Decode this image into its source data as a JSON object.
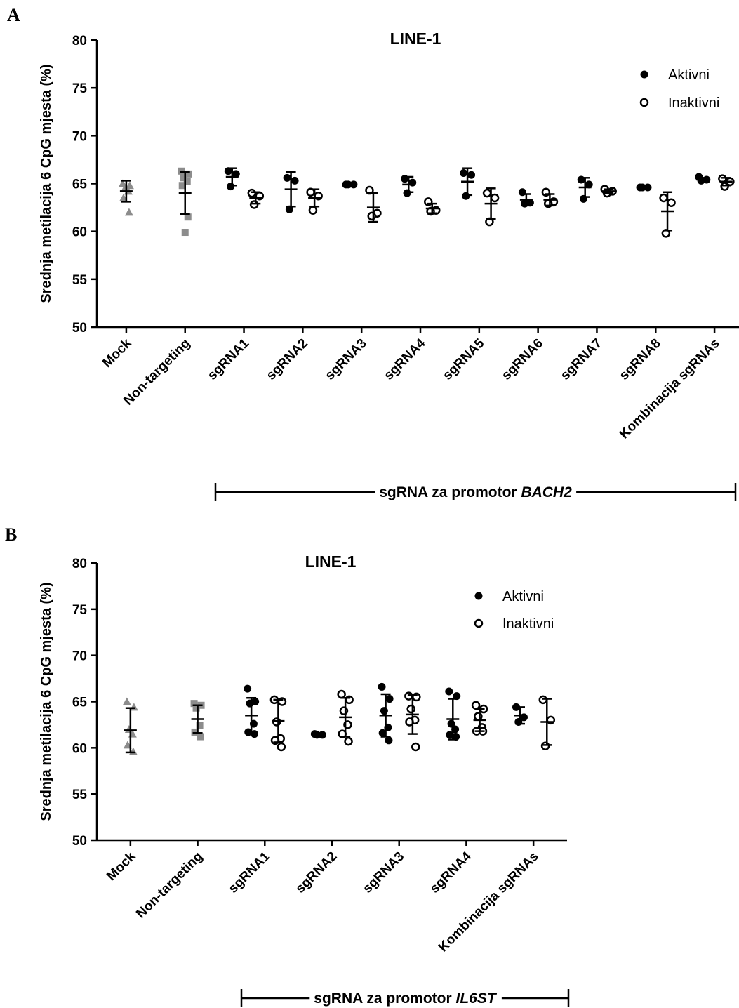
{
  "chart_data": [
    {
      "panel_label": "A",
      "type": "scatter",
      "title": "LINE-1",
      "ylabel": "Srednja metilacija 6 CpG mjesta (%)",
      "ylim": [
        50,
        80
      ],
      "yticks": [
        50,
        55,
        60,
        65,
        70,
        75,
        80
      ],
      "categories": [
        "Mock",
        "Non-targeting",
        "sgRNA1",
        "sgRNA2",
        "sgRNA3",
        "sgRNA4",
        "sgRNA5",
        "sgRNA6",
        "sgRNA7",
        "sgRNA8",
        "Kombinacija sgRNAs"
      ],
      "legend": {
        "placement": "top-right",
        "entries": [
          "Aktivni",
          "Inaktivni"
        ]
      },
      "bracket": {
        "prefix": "sgRNA za promotor ",
        "gene": "BACH2",
        "from_category": "sgRNA1",
        "to_category": "Kombinacija sgRNAs"
      },
      "controls": [
        {
          "category": "Mock",
          "marker": "triangle",
          "color": "#8c8c8c",
          "values": [
            65.0,
            64.8,
            64.5,
            64.2,
            63.5,
            62.0
          ],
          "mean": 64.2,
          "sd": 1.1
        },
        {
          "category": "Non-targeting",
          "marker": "square",
          "color": "#8c8c8c",
          "values": [
            66.3,
            66.0,
            65.6,
            65.2,
            64.8,
            61.5,
            59.9
          ],
          "mean": 64.0,
          "sd": 2.2
        }
      ],
      "series": [
        {
          "name": "Aktivni",
          "marker": "filled-circle",
          "groups": [
            {
              "category": "sgRNA1",
              "values": [
                66.3,
                66.0,
                64.7
              ],
              "mean": 65.7,
              "sd": 0.9
            },
            {
              "category": "sgRNA2",
              "values": [
                65.6,
                65.3,
                62.3
              ],
              "mean": 64.4,
              "sd": 1.8
            },
            {
              "category": "sgRNA3",
              "values": [
                64.9,
                64.9,
                64.9
              ],
              "mean": 64.9,
              "sd": 0.1
            },
            {
              "category": "sgRNA4",
              "values": [
                65.5,
                65.1,
                64.0
              ],
              "mean": 64.9,
              "sd": 0.8
            },
            {
              "category": "sgRNA5",
              "values": [
                66.1,
                65.9,
                63.7
              ],
              "mean": 65.2,
              "sd": 1.4
            },
            {
              "category": "sgRNA6",
              "values": [
                64.1,
                63.0,
                62.9
              ],
              "mean": 63.3,
              "sd": 0.6
            },
            {
              "category": "sgRNA7",
              "values": [
                65.4,
                64.9,
                63.4
              ],
              "mean": 64.6,
              "sd": 1.0
            },
            {
              "category": "sgRNA8",
              "values": [
                64.6,
                64.6,
                64.6
              ],
              "mean": 64.6,
              "sd": 0.1
            },
            {
              "category": "Kombinacija sgRNAs",
              "values": [
                65.7,
                65.4,
                65.3
              ],
              "mean": 65.4,
              "sd": 0.2
            }
          ]
        },
        {
          "name": "Inaktivni",
          "marker": "open-circle",
          "groups": [
            {
              "category": "sgRNA1",
              "values": [
                64.0,
                63.7,
                62.8
              ],
              "mean": 63.5,
              "sd": 0.6
            },
            {
              "category": "sgRNA2",
              "values": [
                64.1,
                63.7,
                62.2
              ],
              "mean": 63.5,
              "sd": 0.9
            },
            {
              "category": "sgRNA3",
              "values": [
                64.3,
                61.9,
                61.6
              ],
              "mean": 62.5,
              "sd": 1.5
            },
            {
              "category": "sgRNA4",
              "values": [
                63.1,
                62.2,
                62.1
              ],
              "mean": 62.4,
              "sd": 0.5
            },
            {
              "category": "sgRNA5",
              "values": [
                64.0,
                63.5,
                61.0
              ],
              "mean": 62.9,
              "sd": 1.6
            },
            {
              "category": "sgRNA6",
              "values": [
                64.1,
                63.1,
                62.9
              ],
              "mean": 63.3,
              "sd": 0.6
            },
            {
              "category": "sgRNA7",
              "values": [
                64.4,
                64.2,
                64.0
              ],
              "mean": 64.2,
              "sd": 0.2
            },
            {
              "category": "sgRNA8",
              "values": [
                63.5,
                63.0,
                59.8
              ],
              "mean": 62.1,
              "sd": 2.0
            },
            {
              "category": "Kombinacija sgRNAs",
              "values": [
                65.5,
                65.2,
                64.7
              ],
              "mean": 65.2,
              "sd": 0.4
            }
          ]
        }
      ]
    },
    {
      "panel_label": "B",
      "type": "scatter",
      "title": "LINE-1",
      "ylabel": "Srednja metilacija 6 CpG mjesta (%)",
      "ylim": [
        50,
        80
      ],
      "yticks": [
        50,
        55,
        60,
        65,
        70,
        75,
        80
      ],
      "categories": [
        "Mock",
        "Non-targeting",
        "sgRNA1",
        "sgRNA2",
        "sgRNA3",
        "sgRNA4",
        "Kombinacija sgRNAs"
      ],
      "legend": {
        "placement": "top-right",
        "entries": [
          "Aktivni",
          "Inaktivni"
        ]
      },
      "bracket": {
        "prefix": "sgRNA za promotor ",
        "gene": "IL6ST",
        "from_category": "sgRNA1",
        "to_category": "Kombinacija sgRNAs"
      },
      "controls": [
        {
          "category": "Mock",
          "marker": "triangle",
          "color": "#8c8c8c",
          "values": [
            65.0,
            64.4,
            62.0,
            61.5,
            60.3,
            59.6
          ],
          "mean": 61.9,
          "sd": 2.4
        },
        {
          "category": "Non-targeting",
          "marker": "square",
          "color": "#8c8c8c",
          "values": [
            64.8,
            64.6,
            64.3,
            62.4,
            61.7,
            61.2
          ],
          "mean": 63.1,
          "sd": 1.5
        }
      ],
      "series": [
        {
          "name": "Aktivni",
          "marker": "filled-circle",
          "groups": [
            {
              "category": "sgRNA1",
              "values": [
                66.4,
                65.0,
                64.8,
                62.6,
                61.7,
                61.5
              ],
              "mean": 63.5,
              "sd": 1.9
            },
            {
              "category": "sgRNA2",
              "values": [
                61.5,
                61.4,
                61.4
              ],
              "mean": 61.4,
              "sd": 0.1
            },
            {
              "category": "sgRNA3",
              "values": [
                66.6,
                65.3,
                64.0,
                62.2,
                61.6,
                60.8
              ],
              "mean": 63.5,
              "sd": 2.3
            },
            {
              "category": "sgRNA4",
              "values": [
                66.1,
                65.6,
                62.6,
                62.0,
                61.4,
                61.2
              ],
              "mean": 63.1,
              "sd": 2.2
            },
            {
              "category": "Kombinacija sgRNAs",
              "values": [
                64.4,
                63.3,
                62.8
              ],
              "mean": 63.5,
              "sd": 0.9
            }
          ]
        },
        {
          "name": "Inaktivni",
          "marker": "open-circle",
          "groups": [
            {
              "category": "sgRNA1",
              "values": [
                65.2,
                65.0,
                62.8,
                61.0,
                60.8,
                60.1
              ],
              "mean": 62.9,
              "sd": 2.3
            },
            {
              "category": "sgRNA2",
              "values": [
                65.8,
                65.2,
                64.0,
                62.5,
                61.5,
                60.7
              ],
              "mean": 63.3,
              "sd": 2.1
            },
            {
              "category": "sgRNA3",
              "values": [
                65.6,
                65.5,
                64.2,
                63.0,
                62.8,
                60.1
              ],
              "mean": 63.6,
              "sd": 2.1
            },
            {
              "category": "sgRNA4",
              "values": [
                64.6,
                64.2,
                63.4,
                62.2,
                61.8,
                61.8
              ],
              "mean": 63.0,
              "sd": 1.2
            },
            {
              "category": "Kombinacija sgRNAs",
              "values": [
                65.2,
                63.0,
                60.2
              ],
              "mean": 62.8,
              "sd": 2.5
            }
          ]
        }
      ]
    }
  ]
}
